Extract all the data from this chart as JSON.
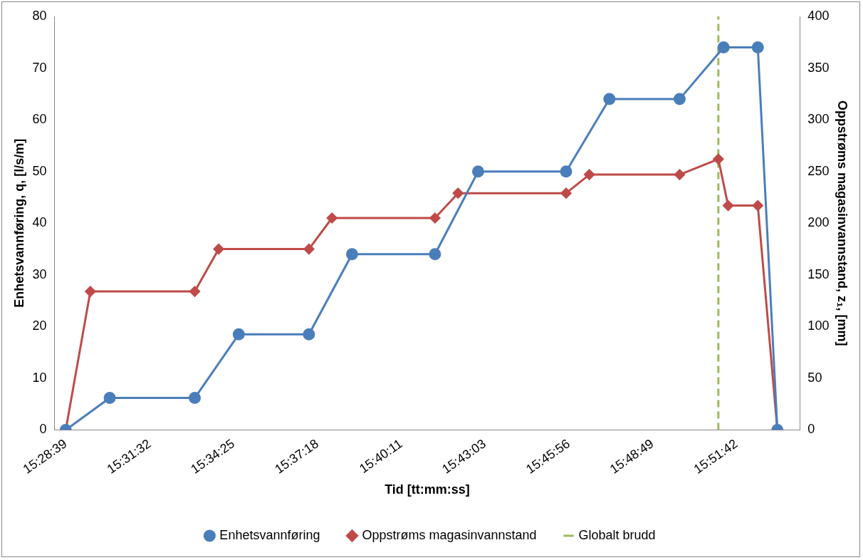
{
  "chart_data": {
    "type": "line",
    "xlabel": "Tid [tt:mm:ss]",
    "ylabel": "Enhetsvannføring, q, [l/s/m]",
    "y2label": "Oppstrøms magasinvannstand, z₁, [mm]",
    "xlim": [
      15.4711,
      15.898
    ],
    "xticks": [
      {
        "value": 15.4775,
        "label": "15:28:39"
      },
      {
        "value": 15.5256,
        "label": "15:31:32"
      },
      {
        "value": 15.5736,
        "label": "15:34:25"
      },
      {
        "value": 15.6217,
        "label": "15:37:18"
      },
      {
        "value": 15.6697,
        "label": "15:40:11"
      },
      {
        "value": 15.7175,
        "label": "15:43:03"
      },
      {
        "value": 15.7656,
        "label": "15:45:56"
      },
      {
        "value": 15.8136,
        "label": "15:48:49"
      },
      {
        "value": 15.8617,
        "label": "15:51:42"
      }
    ],
    "ylim": [
      0,
      80
    ],
    "yticks": [
      0,
      10,
      20,
      30,
      40,
      50,
      60,
      70,
      80
    ],
    "y2lim": [
      0,
      400
    ],
    "y2ticks": [
      0,
      50,
      100,
      150,
      200,
      250,
      300,
      350,
      400
    ],
    "grid": false,
    "legend": "bottom",
    "series": [
      {
        "name": "Enhetsvannføring",
        "color": "#4a7ebb",
        "marker": "circle",
        "x": [
          15.4775,
          15.5027,
          15.5514,
          15.5766,
          15.6168,
          15.6415,
          15.689,
          15.7137,
          15.7641,
          15.7889,
          15.8291,
          15.8543,
          15.8739,
          15.8851
        ],
        "values": [
          0,
          6.2,
          6.2,
          18.5,
          18.5,
          34,
          34,
          50,
          50,
          64,
          64,
          74,
          74,
          0
        ]
      },
      {
        "name": "Oppstrøms magasinvannstand",
        "color": "#be4b48",
        "marker": "diamond",
        "axis": "y2",
        "x": [
          15.4775,
          15.4916,
          15.5514,
          15.5651,
          15.6168,
          15.63,
          15.689,
          15.7022,
          15.7641,
          15.7774,
          15.8291,
          15.8513,
          15.8569,
          15.8739,
          15.8851
        ],
        "values": [
          0,
          134,
          134,
          175,
          175,
          205,
          205,
          229,
          229,
          247,
          247,
          262,
          217,
          217,
          0
        ]
      },
      {
        "name": "Globalt brudd",
        "color": "#9bbb59",
        "marker": "none",
        "line_style": "dashed",
        "x": [
          15.8513,
          15.8513
        ],
        "values": [
          0,
          80
        ]
      }
    ]
  }
}
